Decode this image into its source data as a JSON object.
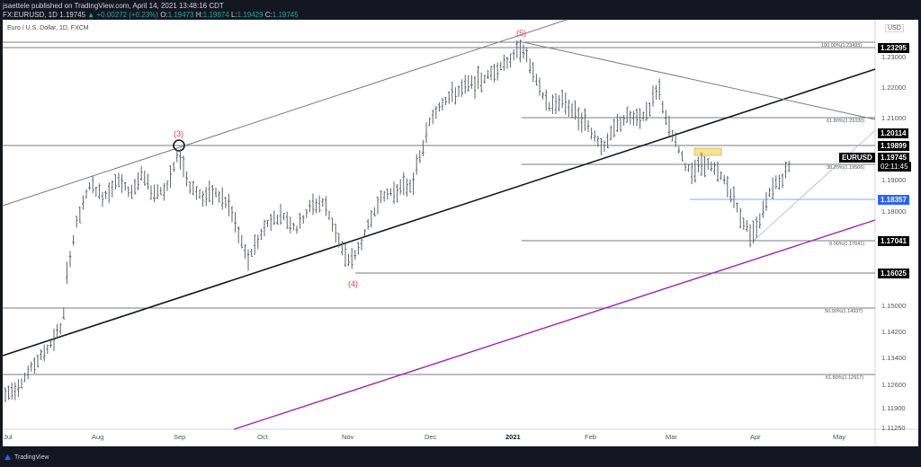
{
  "header": {
    "published_line": "jsaettele published on TradingView.com, April 14, 2021 13:48:16 CDT",
    "symbol": "FX:EURUSD, 1D",
    "last": "1.19745",
    "change": "+0.00272 (+0.23%)",
    "open_label": "O:",
    "open": "1.19473",
    "high_label": "H:",
    "high": "1.19874",
    "low_label": "L:",
    "low": "1.19429",
    "close_label": "C:",
    "close": "1.19745"
  },
  "legend": {
    "title": "Euro / U.S. Dollar, 1D, FXCM"
  },
  "currency_button": "USD",
  "symbol_tag": "EURUSD",
  "countdown": "02:11:45",
  "footer": {
    "brand": "TradingView"
  },
  "colors": {
    "bar": "#5d606b",
    "wave_label": "#f23645",
    "support_line": "#90bff9",
    "support_tag": "#2962ff",
    "channel_line": "#9c27b0",
    "highlight_box": "#f7e08a",
    "up": "#26a69a"
  },
  "chart_data": {
    "type": "ohlc",
    "title": "Euro / U.S. Dollar, 1D, FXCM",
    "symbol": "EURUSD",
    "xlabel": "",
    "ylabel": "USD",
    "ylim": [
      1.1125,
      1.2345
    ],
    "x_ticks": [
      "Jul",
      "Aug",
      "Sep",
      "Oct",
      "Nov",
      "Dec",
      "2021",
      "Feb",
      "Mar",
      "Apr",
      "May"
    ],
    "y_ticks": [
      "1.23000",
      "1.22000",
      "1.21000",
      "1.19000",
      "1.18000",
      "1.15000",
      "1.14200",
      "1.13400",
      "1.12600",
      "1.11900",
      "1.11250"
    ],
    "price_tags": [
      {
        "value": "1.23295",
        "style": "black"
      },
      {
        "value": "1.20114",
        "style": "black"
      },
      {
        "value": "1.19899",
        "style": "black"
      },
      {
        "value": "1.19745",
        "style": "black",
        "label": "EURUSD",
        "countdown": "02:11:45"
      },
      {
        "value": "1.18357",
        "style": "blue"
      },
      {
        "value": "1.17041",
        "style": "black"
      },
      {
        "value": "1.16025",
        "style": "black"
      }
    ],
    "fib_levels": [
      {
        "label": "100.00%(1.23495)",
        "value": 1.23495
      },
      {
        "label": "61.80%(1.21020)",
        "value": 1.2102
      },
      {
        "label": "38.20%(1.19506)",
        "value": 1.19506
      },
      {
        "label": "0.00%(1.17041)",
        "value": 1.17041
      },
      {
        "label": "50.00%(1.14937)",
        "value": 1.14937
      },
      {
        "label": "61.80%(1.12917)",
        "value": 1.12917
      }
    ],
    "wave_labels": [
      "(3)",
      "(4)",
      "(5)"
    ],
    "annotations": [
      "Elliott wave count (3)-(4)-(5)",
      "Rising channel",
      "Long-term trendline",
      "Descending trendline from (5)",
      "Highlighted resistance zone near 1.199",
      "Support 1.18357"
    ],
    "last_price": 1.19745
  }
}
